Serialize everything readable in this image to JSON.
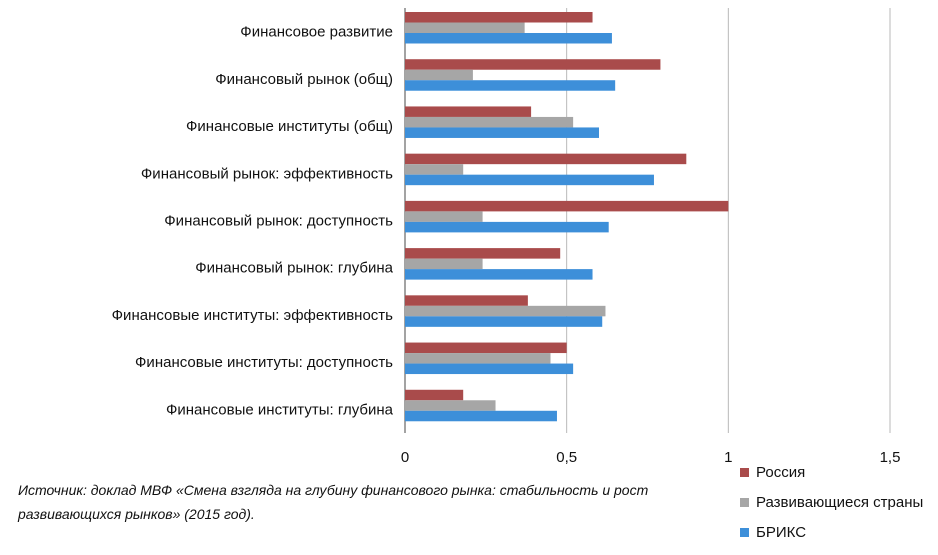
{
  "chart_data": {
    "type": "bar",
    "orientation": "horizontal",
    "categories": [
      "Финансовое развитие",
      "Финансовый рынок (общ)",
      "Финансовые институты (общ)",
      "Финансовый рынок: эффективность",
      "Финансовый рынок: доступность",
      "Финансовый рынок: глубина",
      "Финансовые институты: эффективность",
      "Финансовые институты: доступность",
      "Финансовые институты: глубина"
    ],
    "series": [
      {
        "name": "Россия",
        "color": "#a94b4b",
        "values": [
          0.58,
          0.79,
          0.39,
          0.87,
          1.0,
          0.48,
          0.38,
          0.5,
          0.18
        ]
      },
      {
        "name": "Развивающиеся страны",
        "color": "#a6a6a6",
        "values": [
          0.37,
          0.21,
          0.52,
          0.18,
          0.24,
          0.24,
          0.62,
          0.45,
          0.28
        ]
      },
      {
        "name": "БРИКС",
        "color": "#3d8fd9",
        "values": [
          0.64,
          0.65,
          0.6,
          0.77,
          0.63,
          0.58,
          0.61,
          0.52,
          0.47
        ]
      }
    ],
    "xlim": [
      0,
      1.5
    ],
    "xticks": [
      0,
      0.5,
      1,
      1.5
    ],
    "xtick_labels": [
      "0",
      "0,5",
      "1",
      "1,5"
    ],
    "grid": "vertical",
    "legend_placement": "bottom-right"
  },
  "source_note": "Источник: доклад МВФ «Смена взгляда на глубину финансового рынка: стабильность и рост развивающихся рынков» (2015 год)."
}
